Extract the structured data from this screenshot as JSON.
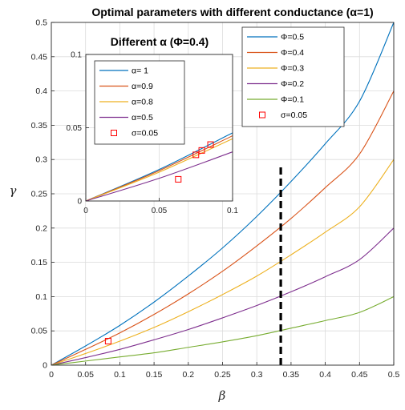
{
  "chart_data": [
    {
      "type": "line",
      "title": "Optimal parameters with different conductance (α=1)",
      "xlabel": "β",
      "ylabel": "γ",
      "xlim": [
        0,
        0.5
      ],
      "ylim": [
        0,
        0.5
      ],
      "grid": true,
      "xticks": [
        "0",
        "0.05",
        "0.1",
        "0.15",
        "0.2",
        "0.25",
        "0.3",
        "0.35",
        "0.4",
        "0.45",
        "0.5"
      ],
      "yticks": [
        "0",
        "0.05",
        "0.1",
        "0.15",
        "0.2",
        "0.25",
        "0.3",
        "0.35",
        "0.4",
        "0.45",
        "0.5"
      ],
      "legend_position": "top-right",
      "series": [
        {
          "name": "Φ=0.5",
          "color": "#0072bd",
          "x": [
            0,
            0.05,
            0.1,
            0.15,
            0.2,
            0.25,
            0.3,
            0.35,
            0.4,
            0.45,
            0.5
          ],
          "y": [
            0,
            0.028,
            0.058,
            0.092,
            0.13,
            0.171,
            0.217,
            0.268,
            0.323,
            0.385,
            0.5
          ]
        },
        {
          "name": "Φ=0.4",
          "color": "#d95319",
          "x": [
            0,
            0.05,
            0.1,
            0.15,
            0.2,
            0.25,
            0.3,
            0.35,
            0.4,
            0.45,
            0.5
          ],
          "y": [
            0,
            0.023,
            0.047,
            0.074,
            0.104,
            0.137,
            0.174,
            0.214,
            0.259,
            0.308,
            0.4
          ]
        },
        {
          "name": "Φ=0.3",
          "color": "#edb120",
          "x": [
            0,
            0.05,
            0.1,
            0.15,
            0.2,
            0.25,
            0.3,
            0.35,
            0.4,
            0.45,
            0.5
          ],
          "y": [
            0,
            0.017,
            0.035,
            0.055,
            0.078,
            0.103,
            0.13,
            0.161,
            0.194,
            0.231,
            0.3
          ]
        },
        {
          "name": "Φ=0.2",
          "color": "#7e2f8e",
          "x": [
            0,
            0.05,
            0.1,
            0.15,
            0.2,
            0.25,
            0.3,
            0.35,
            0.4,
            0.45,
            0.5
          ],
          "y": [
            0,
            0.011,
            0.023,
            0.037,
            0.052,
            0.069,
            0.087,
            0.107,
            0.129,
            0.154,
            0.2
          ]
        },
        {
          "name": "Φ=0.1",
          "color": "#77ac30",
          "x": [
            0,
            0.05,
            0.1,
            0.15,
            0.2,
            0.25,
            0.3,
            0.35,
            0.4,
            0.45,
            0.5
          ],
          "y": [
            0,
            0.006,
            0.012,
            0.018,
            0.026,
            0.034,
            0.043,
            0.054,
            0.065,
            0.077,
            0.1
          ]
        }
      ],
      "markers": {
        "name": "σ=0.05",
        "color": "#ff0000",
        "points": [
          {
            "x": 0.083,
            "y": 0.035
          }
        ]
      },
      "vline": {
        "x": 0.335,
        "y_range": [
          0,
          0.29
        ],
        "color": "#000000"
      }
    },
    {
      "type": "line",
      "title": "Different α (Φ=0.4)",
      "xlim": [
        0,
        0.1
      ],
      "ylim": [
        0,
        0.1
      ],
      "grid": true,
      "xticks": [
        "0",
        "0.05",
        "0.1"
      ],
      "yticks": [
        "0",
        "0.05",
        "0.1"
      ],
      "legend_position": "top-left",
      "series": [
        {
          "name": "α= 1",
          "color": "#0072bd",
          "x": [
            0,
            0.05,
            0.1
          ],
          "y": [
            0,
            0.0215,
            0.0465
          ]
        },
        {
          "name": "α=0.9",
          "color": "#d95319",
          "x": [
            0,
            0.05,
            0.1
          ],
          "y": [
            0,
            0.0207,
            0.0445
          ]
        },
        {
          "name": "α=0.8",
          "color": "#edb120",
          "x": [
            0,
            0.05,
            0.1
          ],
          "y": [
            0,
            0.0197,
            0.0425
          ]
        },
        {
          "name": "α=0.5",
          "color": "#7e2f8e",
          "x": [
            0,
            0.05,
            0.1
          ],
          "y": [
            0,
            0.0155,
            0.0335
          ]
        }
      ],
      "markers": {
        "name": "σ=0.05",
        "color": "#ff0000",
        "points": [
          {
            "x": 0.085,
            "y": 0.0385
          },
          {
            "x": 0.079,
            "y": 0.0345
          },
          {
            "x": 0.075,
            "y": 0.0315
          },
          {
            "x": 0.063,
            "y": 0.0148
          }
        ]
      }
    }
  ]
}
